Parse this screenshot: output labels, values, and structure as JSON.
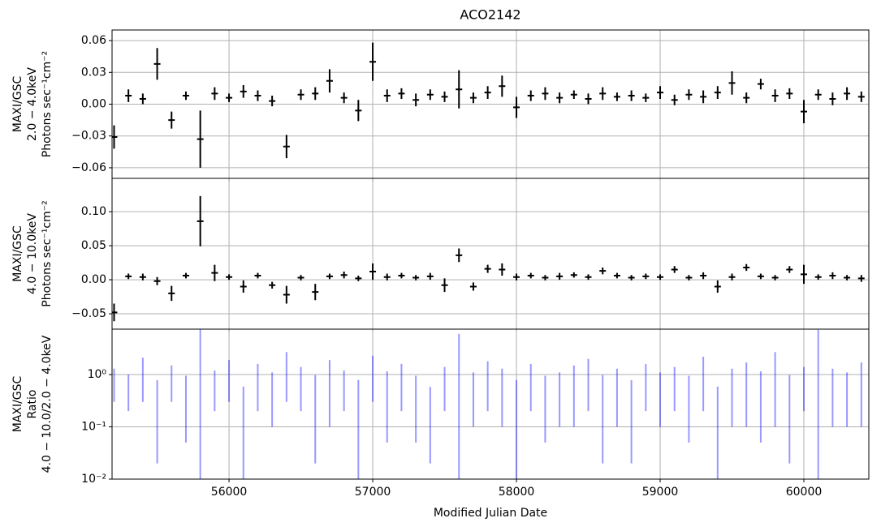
{
  "chart_data": [
    {
      "type": "errorbar",
      "title": "ACO2142",
      "ylabel": [
        "MAXI/GSC",
        "2.0 − 4.0keV",
        "Photons sec⁻¹cm⁻²"
      ],
      "xlim": [
        55186,
        60452
      ],
      "xticks": [
        56000,
        57000,
        58000,
        59000,
        60000
      ],
      "ylim": [
        -0.07,
        0.07
      ],
      "yticks": [
        {
          "value": -0.06,
          "label": "−0.06"
        },
        {
          "value": -0.03,
          "label": "−0.03"
        },
        {
          "value": 0,
          "label": "0.00"
        },
        0.03,
        0.06
      ],
      "grid": true,
      "log": false,
      "x": [
        55200,
        55300,
        55400,
        55500,
        55600,
        55700,
        55800,
        55900,
        56000,
        56100,
        56200,
        56300,
        56400,
        56500,
        56600,
        56700,
        56800,
        56900,
        57000,
        57100,
        57200,
        57300,
        57400,
        57500,
        57600,
        57700,
        57800,
        57900,
        58000,
        58100,
        58200,
        58300,
        58400,
        58500,
        58600,
        58700,
        58800,
        58900,
        59000,
        59100,
        59200,
        59300,
        59400,
        59500,
        59600,
        59700,
        59800,
        59900,
        60000,
        60100,
        60200,
        60300,
        60400
      ],
      "series": [
        {
          "color": "#000000",
          "alpha": 1,
          "values": [
            -0.031,
            0.008,
            0.005,
            0.038,
            -0.015,
            0.008,
            -0.033,
            0.01,
            0.006,
            0.012,
            0.008,
            0.003,
            -0.04,
            0.009,
            0.01,
            0.022,
            0.006,
            -0.006,
            0.04,
            0.008,
            0.01,
            0.004,
            0.009,
            0.007,
            0.014,
            0.006,
            0.011,
            0.017,
            -0.003,
            0.008,
            0.01,
            0.006,
            0.009,
            0.005,
            0.01,
            0.007,
            0.008,
            0.006,
            0.011,
            0.004,
            0.009,
            0.007,
            0.011,
            0.02,
            0.006,
            0.019,
            0.008,
            0.01,
            -0.007,
            0.009,
            0.005,
            0.01,
            0.007
          ],
          "errors": [
            0.011,
            0.006,
            0.005,
            0.015,
            0.008,
            0.004,
            0.027,
            0.006,
            0.004,
            0.006,
            0.005,
            0.005,
            0.011,
            0.005,
            0.006,
            0.011,
            0.005,
            0.01,
            0.018,
            0.006,
            0.005,
            0.006,
            0.005,
            0.005,
            0.018,
            0.005,
            0.006,
            0.01,
            0.01,
            0.005,
            0.006,
            0.005,
            0.004,
            0.005,
            0.006,
            0.004,
            0.005,
            0.004,
            0.006,
            0.005,
            0.005,
            0.006,
            0.006,
            0.011,
            0.005,
            0.005,
            0.006,
            0.005,
            0.011,
            0.005,
            0.006,
            0.006,
            0.005
          ]
        }
      ]
    },
    {
      "type": "errorbar",
      "ylabel": [
        "MAXI/GSC",
        "4.0 − 10.0keV",
        "Photons sec⁻¹cm⁻²"
      ],
      "xlim": [
        55186,
        60452
      ],
      "xticks": [
        56000,
        57000,
        58000,
        59000,
        60000
      ],
      "ylim": [
        -0.0726,
        0.149
      ],
      "yticks": [
        {
          "value": -0.05,
          "label": "−0.05"
        },
        {
          "value": 0,
          "label": "0.00"
        },
        0.05,
        {
          "value": 0.1,
          "label": "0.10"
        }
      ],
      "grid": true,
      "log": false,
      "x": [
        55200,
        55300,
        55400,
        55500,
        55600,
        55700,
        55800,
        55900,
        56000,
        56100,
        56200,
        56300,
        56400,
        56500,
        56600,
        56700,
        56800,
        56900,
        57000,
        57100,
        57200,
        57300,
        57400,
        57500,
        57600,
        57700,
        57800,
        57900,
        58000,
        58100,
        58200,
        58300,
        58400,
        58500,
        58600,
        58700,
        58800,
        58900,
        59000,
        59100,
        59200,
        59300,
        59400,
        59500,
        59600,
        59700,
        59800,
        59900,
        60000,
        60100,
        60200,
        60300,
        60400
      ],
      "series": [
        {
          "color": "#000000",
          "alpha": 1,
          "values": [
            -0.048,
            0.005,
            0.004,
            -0.002,
            -0.02,
            0.006,
            0.086,
            0.01,
            0.004,
            -0.01,
            0.006,
            -0.008,
            -0.022,
            0.003,
            -0.018,
            0.005,
            0.007,
            0.002,
            0.012,
            0.004,
            0.006,
            0.003,
            0.005,
            -0.008,
            0.036,
            -0.01,
            0.016,
            0.015,
            0.004,
            0.006,
            0.003,
            0.005,
            0.007,
            0.004,
            0.013,
            0.006,
            0.003,
            0.005,
            0.004,
            0.015,
            0.003,
            0.006,
            -0.01,
            0.004,
            0.018,
            0.005,
            0.003,
            0.015,
            0.008,
            0.004,
            0.006,
            0.003,
            0.002
          ],
          "errors": [
            0.013,
            0.004,
            0.005,
            0.006,
            0.011,
            0.004,
            0.037,
            0.012,
            0.004,
            0.009,
            0.004,
            0.005,
            0.013,
            0.004,
            0.012,
            0.004,
            0.005,
            0.004,
            0.012,
            0.005,
            0.004,
            0.004,
            0.005,
            0.01,
            0.01,
            0.006,
            0.006,
            0.009,
            0.005,
            0.004,
            0.004,
            0.005,
            0.004,
            0.004,
            0.005,
            0.004,
            0.004,
            0.004,
            0.004,
            0.005,
            0.004,
            0.005,
            0.009,
            0.005,
            0.005,
            0.004,
            0.004,
            0.005,
            0.014,
            0.004,
            0.005,
            0.004,
            0.005
          ]
        }
      ]
    },
    {
      "type": "errorbar",
      "ylabel": [
        "MAXI/GSC",
        "Ratio",
        "4.0 − 10.0/2.0 − 4.0keV"
      ],
      "xlabel": "Modified Julian Date",
      "xlim": [
        55186,
        60452
      ],
      "xticks": [
        56000,
        57000,
        58000,
        59000,
        60000
      ],
      "ylim": [
        0.01,
        7.4
      ],
      "yticks": [
        {
          "value": 0.01,
          "label": "10⁻²"
        },
        {
          "value": 0.1,
          "label": "10⁻¹"
        },
        {
          "value": 1,
          "label": "10⁰"
        }
      ],
      "grid": true,
      "log": true,
      "x": [
        55200,
        55300,
        55400,
        55500,
        55600,
        55700,
        55800,
        55900,
        56000,
        56100,
        56200,
        56300,
        56400,
        56500,
        56600,
        56700,
        56800,
        56900,
        57000,
        57100,
        57200,
        57300,
        57400,
        57500,
        57600,
        57700,
        57800,
        57900,
        58000,
        58100,
        58200,
        58300,
        58400,
        58500,
        58600,
        58700,
        58800,
        58900,
        59000,
        59100,
        59200,
        59300,
        59400,
        59500,
        59600,
        59700,
        59800,
        59900,
        60000,
        60100,
        60200,
        60300,
        60400
      ],
      "series": [
        {
          "color": "#0000ff",
          "alpha": 0.4,
          "values": [
            0.8,
            0.6,
            1.2,
            0.4,
            0.9,
            0.5,
            2.5,
            0.7,
            1.1,
            0.3,
            0.9,
            0.6,
            1.5,
            0.8,
            0.5,
            1.0,
            0.7,
            0.4,
            1.3,
            0.6,
            0.9,
            0.5,
            0.3,
            0.8,
            2.0,
            0.6,
            1.0,
            0.7,
            0.4,
            0.9,
            0.5,
            0.6,
            0.8,
            1.1,
            0.5,
            0.7,
            0.4,
            0.9,
            0.6,
            0.8,
            0.5,
            1.2,
            0.3,
            0.7,
            0.9,
            0.6,
            1.4,
            0.5,
            0.8,
            2.2,
            0.7,
            0.6,
            0.9
          ],
          "errors": [
            0.5,
            0.4,
            0.9,
            0.38,
            0.6,
            0.45,
            5,
            0.5,
            0.8,
            0.29,
            0.7,
            0.5,
            1.2,
            0.6,
            0.48,
            0.9,
            0.5,
            0.39,
            1.0,
            0.55,
            0.7,
            0.45,
            0.28,
            0.6,
            4,
            0.5,
            0.8,
            0.6,
            0.39,
            0.7,
            0.45,
            0.5,
            0.7,
            0.9,
            0.48,
            0.6,
            0.38,
            0.7,
            0.5,
            0.6,
            0.45,
            1.0,
            0.29,
            0.6,
            0.8,
            0.55,
            1.3,
            0.48,
            0.6,
            5,
            0.6,
            0.5,
            0.8
          ]
        }
      ]
    }
  ]
}
